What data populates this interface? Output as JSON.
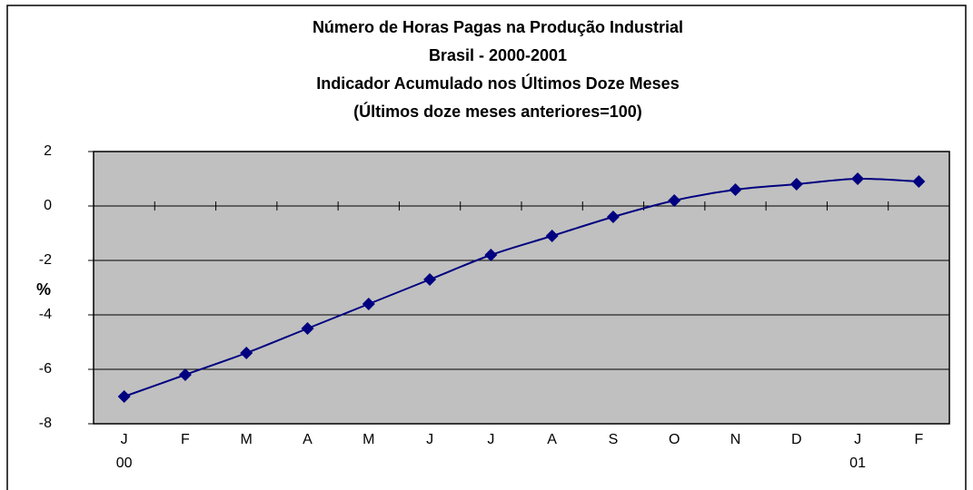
{
  "chart_data": {
    "type": "line",
    "title": [
      "Número de Horas Pagas na Produção Industrial",
      "Brasil - 2000-2001",
      "Indicador Acumulado nos Últimos Doze Meses",
      "(Últimos doze meses anteriores=100)"
    ],
    "y_label": "%",
    "categories": [
      "J",
      "F",
      "M",
      "A",
      "M",
      "J",
      "J",
      "A",
      "S",
      "O",
      "N",
      "D",
      "J",
      "F"
    ],
    "year_labels": [
      "00",
      null,
      null,
      null,
      null,
      null,
      null,
      null,
      null,
      null,
      null,
      null,
      "01",
      null
    ],
    "series": [
      {
        "color": "#000080",
        "values": [
          -7,
          -6.2,
          -5.4,
          -4.5,
          -3.6,
          -2.7,
          -1.8,
          -1.1,
          -0.4,
          0.2,
          0.6,
          0.8,
          1.0,
          0.9
        ]
      }
    ],
    "ylim": [
      -8,
      2
    ],
    "yticks": [
      -8,
      -6,
      -4,
      -2,
      0,
      2
    ],
    "grid": true,
    "smooth": true,
    "plot_background": "#c0c0c0"
  }
}
